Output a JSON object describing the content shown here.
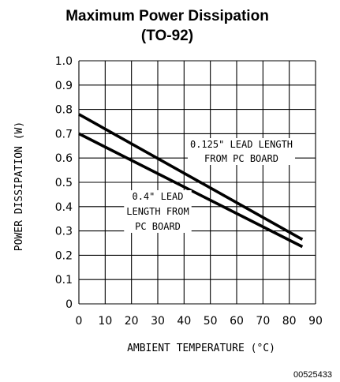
{
  "chart_data": {
    "type": "line",
    "title": "Maximum Power Dissipation",
    "subtitle": "(TO-92)",
    "xlabel": "AMBIENT TEMPERATURE (°C)",
    "ylabel": "POWER DISSIPATION (W)",
    "xlim": [
      0,
      90
    ],
    "ylim": [
      0,
      1.0
    ],
    "x_ticks": [
      "0",
      "10",
      "20",
      "30",
      "40",
      "50",
      "60",
      "70",
      "80",
      "90"
    ],
    "y_ticks": [
      "0",
      "0.1",
      "0.2",
      "0.3",
      "0.4",
      "0.5",
      "0.6",
      "0.7",
      "0.8",
      "0.9",
      "1.0"
    ],
    "grid": true,
    "series": [
      {
        "label": "0.125\" LEAD LENGTH FROM PC BOARD",
        "x": [
          0,
          85
        ],
        "y": [
          0.78,
          0.265
        ]
      },
      {
        "label": "0.4\" LEAD LENGTH FROM PC BOARD",
        "x": [
          0,
          85
        ],
        "y": [
          0.7,
          0.235
        ]
      }
    ],
    "annotations": [
      [
        "0.125\" LEAD LENGTH",
        "FROM PC BOARD"
      ],
      [
        "0.4\" LEAD",
        "LENGTH FROM",
        "PC BOARD"
      ]
    ],
    "figure_code": "00525433",
    "colors": {
      "line": "#000000",
      "grid": "#000000",
      "background": "#ffffff"
    }
  }
}
